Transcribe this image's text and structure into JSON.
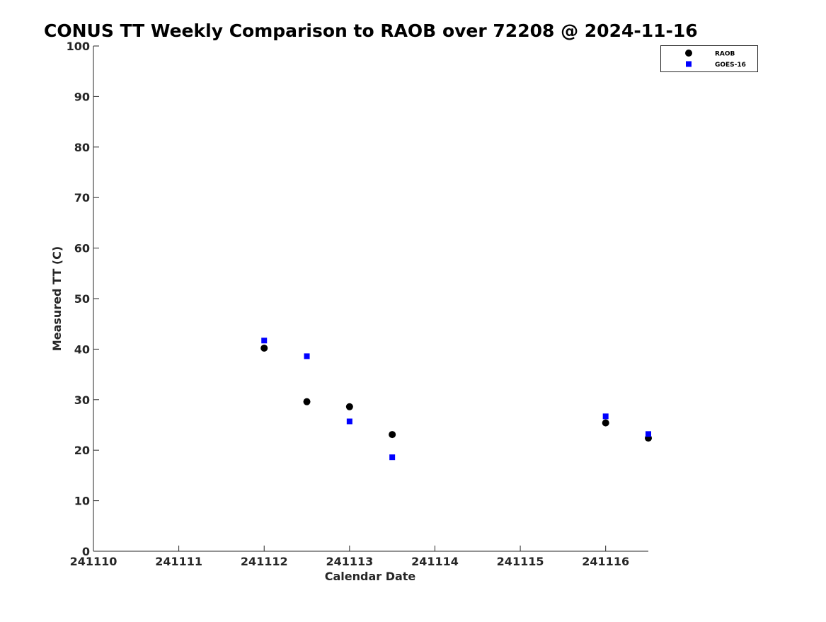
{
  "chart_data": {
    "type": "scatter",
    "title": "CONUS TT Weekly Comparison to RAOB over 72208 @ 2024-11-16",
    "xlabel": "Calendar Date",
    "ylabel": "Measured TT (C)",
    "xlim": [
      "2024-11-10",
      "2024-11-16 12:00"
    ],
    "ylim": [
      0,
      100
    ],
    "x_ticks": [
      "241110",
      "241111",
      "241112",
      "241113",
      "241114",
      "241115",
      "241116"
    ],
    "y_ticks": [
      "0",
      "10",
      "20",
      "30",
      "40",
      "50",
      "60",
      "70",
      "80",
      "90",
      "100"
    ],
    "grid": false,
    "legend_position": "top-right",
    "series": [
      {
        "name": "RAOB",
        "marker": "circle",
        "color": "#000000",
        "x": [
          "2024-11-12 00:00",
          "2024-11-12 12:00",
          "2024-11-13 00:00",
          "2024-11-13 12:00",
          "2024-11-16 00:00",
          "2024-11-16 12:00"
        ],
        "y": [
          40.2,
          29.6,
          28.6,
          23.1,
          25.4,
          22.4
        ]
      },
      {
        "name": "GOES-16",
        "marker": "square",
        "color": "#0000ff",
        "x": [
          "2024-11-12 00:00",
          "2024-11-12 12:00",
          "2024-11-13 00:00",
          "2024-11-13 12:00",
          "2024-11-16 00:00",
          "2024-11-16 12:00"
        ],
        "y": [
          41.7,
          38.6,
          25.7,
          18.6,
          26.7,
          23.2
        ]
      }
    ]
  }
}
